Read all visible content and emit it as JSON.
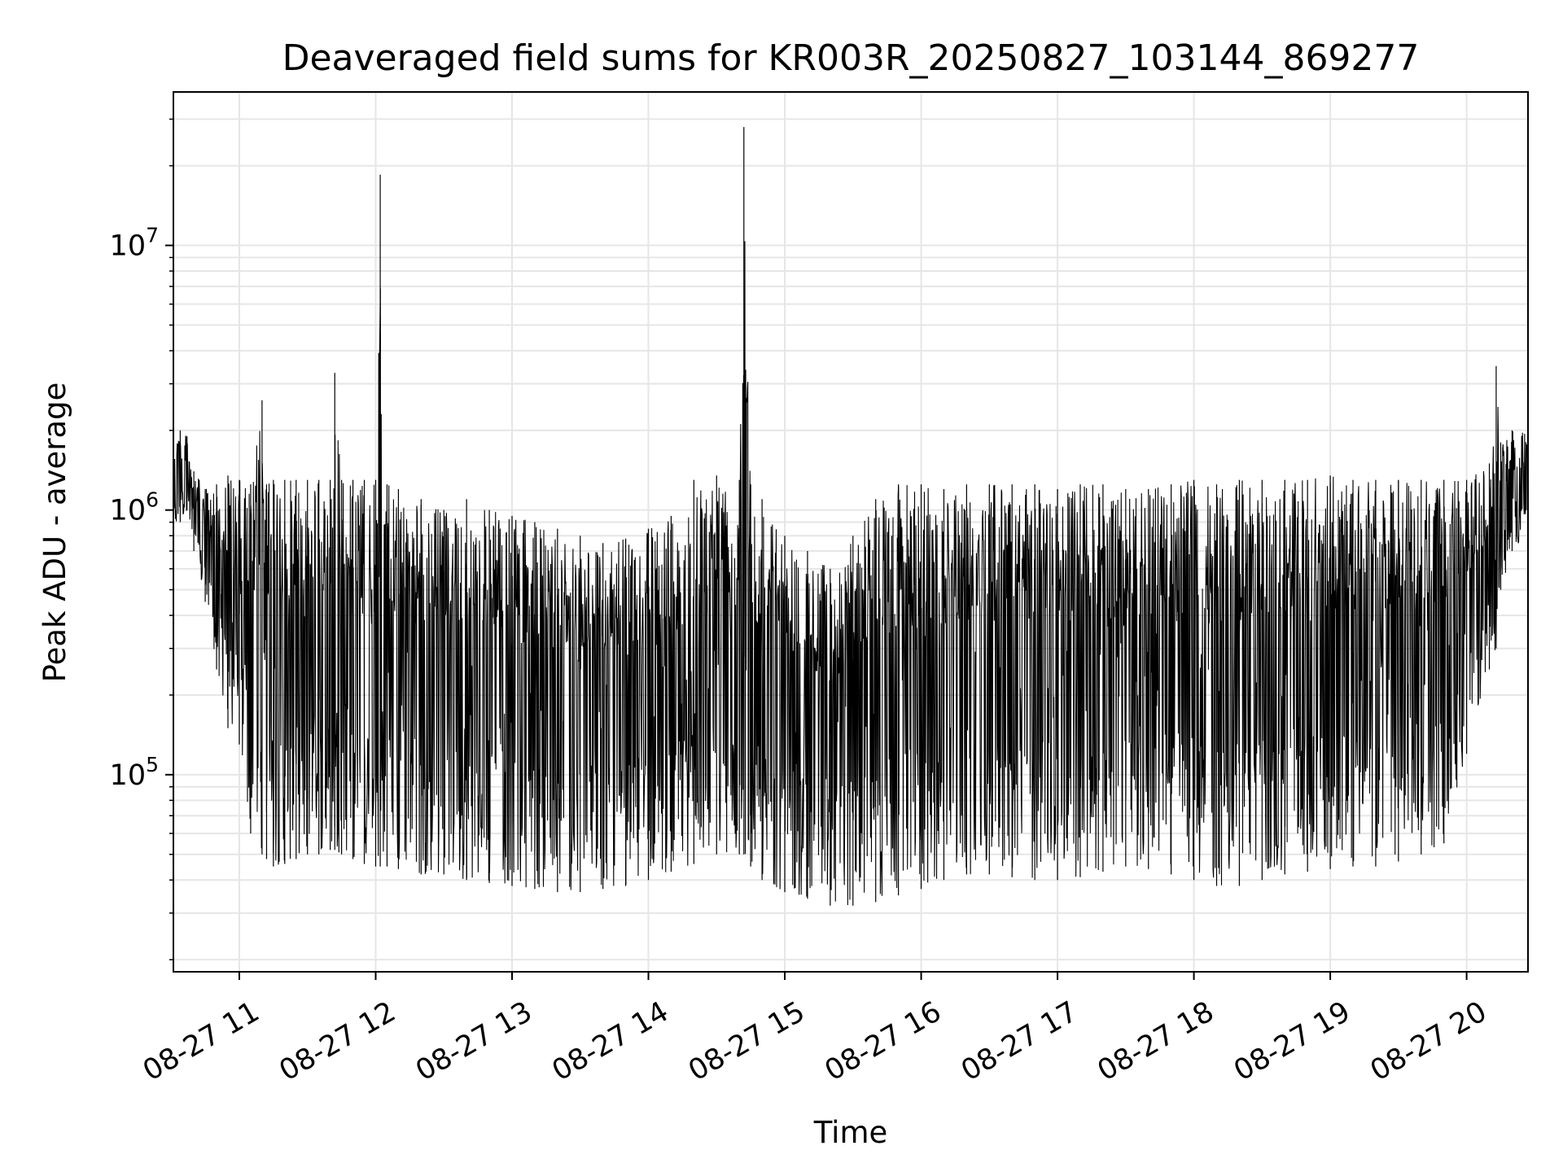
{
  "chart_data": {
    "type": "line",
    "title": "Deaveraged field sums for KR003R_20250827_103144_869277",
    "xlabel": "Time",
    "ylabel": "Peak ADU - average",
    "x_tick_labels": [
      "08-27 11",
      "08-27 12",
      "08-27 13",
      "08-27 14",
      "08-27 15",
      "08-27 16",
      "08-27 17",
      "08-27 18",
      "08-27 19",
      "08-27 20"
    ],
    "y_scale": "log",
    "y_tick_labels": [
      {
        "base": "10",
        "exp": "5",
        "value": 100000
      },
      {
        "base": "10",
        "exp": "6",
        "value": 1000000
      },
      {
        "base": "10",
        "exp": "7",
        "value": 10000000
      }
    ],
    "xlim": [
      "08-27 10:31",
      "08-27 20:27"
    ],
    "ylim": [
      18000,
      38000000
    ],
    "grid": true,
    "line_color": "#000000",
    "grid_color": "#e6e6e6",
    "series": [
      {
        "x": [
          "08-27 10:31",
          "08-27 10:34",
          "08-27 10:37",
          "08-27 10:40",
          "08-27 10:45",
          "08-27 10:50",
          "08-27 10:55",
          "08-27 11:00",
          "08-27 11:05",
          "08-27 11:10",
          "08-27 11:12",
          "08-27 11:15",
          "08-27 11:20",
          "08-27 11:25",
          "08-27 11:30",
          "08-27 11:35",
          "08-27 11:40",
          "08-27 11:42",
          "08-27 11:45",
          "08-27 11:50",
          "08-27 11:55",
          "08-27 12:00",
          "08-27 12:02",
          "08-27 12:05",
          "08-27 12:10",
          "08-27 12:20",
          "08-27 12:30",
          "08-27 12:40",
          "08-27 12:50",
          "08-27 13:00",
          "08-27 13:10",
          "08-27 13:20",
          "08-27 13:30",
          "08-27 13:40",
          "08-27 13:50",
          "08-27 14:00",
          "08-27 14:10",
          "08-27 14:20",
          "08-27 14:30",
          "08-27 14:40",
          "08-27 14:42",
          "08-27 14:45",
          "08-27 14:50",
          "08-27 15:00",
          "08-27 15:10",
          "08-27 15:20",
          "08-27 15:30",
          "08-27 15:40",
          "08-27 15:50",
          "08-27 16:00",
          "08-27 16:10",
          "08-27 16:20",
          "08-27 16:30",
          "08-27 16:40",
          "08-27 16:50",
          "08-27 17:00",
          "08-27 17:10",
          "08-27 17:20",
          "08-27 17:30",
          "08-27 17:40",
          "08-27 17:50",
          "08-27 18:00",
          "08-27 18:10",
          "08-27 18:20",
          "08-27 18:30",
          "08-27 18:40",
          "08-27 18:50",
          "08-27 19:00",
          "08-27 19:10",
          "08-27 19:20",
          "08-27 19:30",
          "08-27 19:40",
          "08-27 19:50",
          "08-27 20:00",
          "08-27 20:10",
          "08-27 20:13",
          "08-27 20:15",
          "08-27 20:20",
          "08-27 20:27"
        ],
        "upper": [
          2100000,
          2000000,
          1900000,
          1400000,
          1200000,
          1250000,
          1350000,
          1300000,
          1250000,
          2600000,
          1250000,
          1300000,
          1300000,
          1300000,
          1300000,
          1300000,
          1300000,
          3300000,
          1300000,
          1300000,
          1300000,
          1300000,
          18500000,
          1250000,
          1200000,
          1100000,
          1000000,
          1100000,
          1000000,
          950000,
          900000,
          850000,
          800000,
          750000,
          780000,
          850000,
          950000,
          1300000,
          1350000,
          1300000,
          28000000,
          1250000,
          1100000,
          800000,
          700000,
          600000,
          800000,
          1100000,
          1250000,
          1250000,
          1200000,
          1250000,
          1250000,
          1250000,
          1250000,
          1200000,
          1250000,
          1250000,
          1200000,
          1200000,
          1250000,
          1300000,
          1250000,
          1300000,
          1300000,
          1300000,
          1300000,
          1350000,
          1300000,
          1300000,
          1300000,
          1300000,
          1300000,
          1300000,
          1500000,
          3500000,
          1800000,
          2000000,
          2000000
        ],
        "lower": [
          800000,
          900000,
          1000000,
          700000,
          450000,
          250000,
          150000,
          130000,
          60000,
          50000,
          48000,
          45000,
          46000,
          48000,
          50000,
          50000,
          52000,
          52000,
          50000,
          48000,
          46000,
          45000,
          45000,
          45000,
          44000,
          42000,
          42000,
          40000,
          39000,
          38000,
          37000,
          36000,
          36000,
          37000,
          38000,
          40000,
          43000,
          46000,
          50000,
          50000,
          50000,
          45000,
          40000,
          36000,
          34000,
          32000,
          32000,
          33000,
          35000,
          37000,
          40000,
          42000,
          42000,
          41000,
          40000,
          40000,
          41000,
          43000,
          45000,
          44000,
          42000,
          40000,
          38000,
          38000,
          40000,
          42000,
          43000,
          44000,
          45000,
          45000,
          47000,
          50000,
          55000,
          120000,
          250000,
          300000,
          500000,
          700000,
          800000
        ]
      }
    ]
  }
}
